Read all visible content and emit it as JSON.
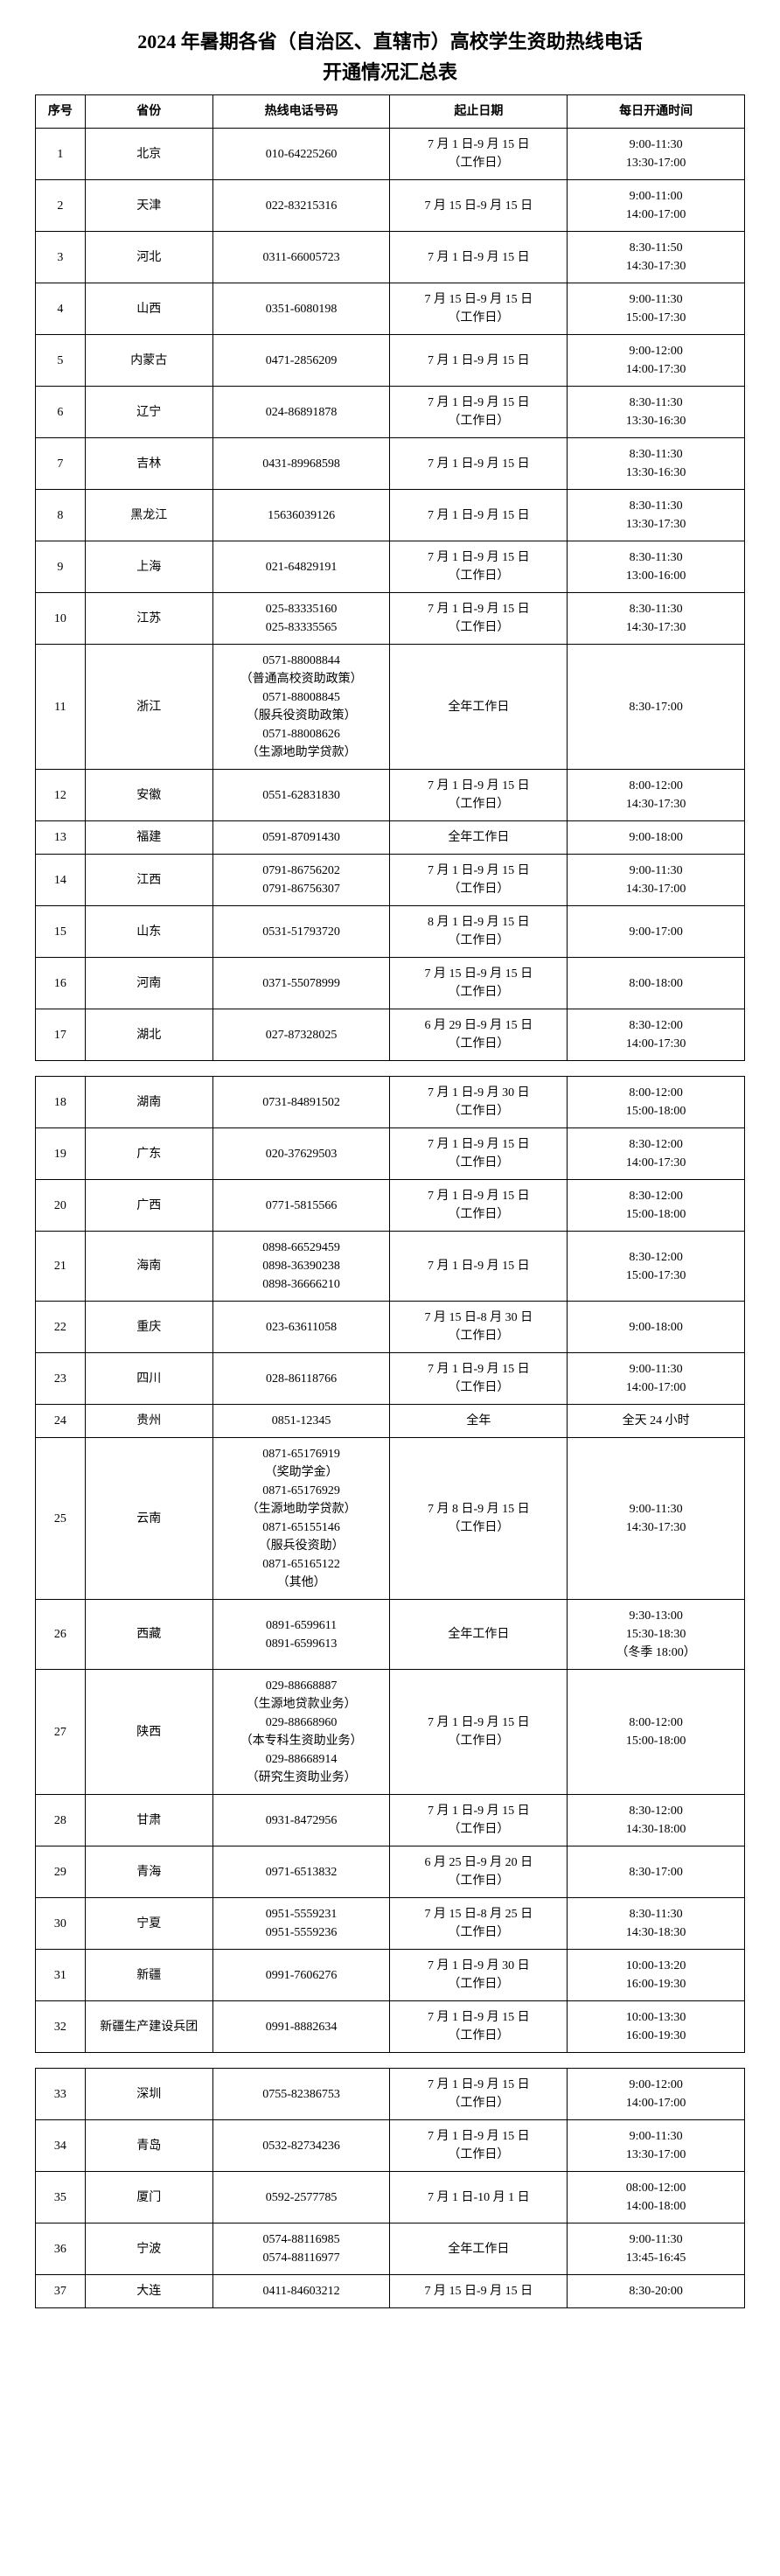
{
  "title_line1": "2024 年暑期各省（自治区、直辖市）高校学生资助热线电话",
  "title_line2": "开通情况汇总表",
  "headers": {
    "idx": "序号",
    "province": "省份",
    "phone": "热线电话号码",
    "dates": "起止日期",
    "hours": "每日开通时间"
  },
  "rows": [
    {
      "idx": "1",
      "prov": "北京",
      "phone": "010-64225260",
      "date": "7 月 1 日-9 月 15 日\n（工作日）",
      "time": "9:00-11:30\n13:30-17:00"
    },
    {
      "idx": "2",
      "prov": "天津",
      "phone": "022-83215316",
      "date": "7 月 15 日-9 月 15 日",
      "time": "9:00-11:00\n14:00-17:00"
    },
    {
      "idx": "3",
      "prov": "河北",
      "phone": "0311-66005723",
      "date": "7 月 1 日-9 月 15 日",
      "time": "8:30-11:50\n14:30-17:30"
    },
    {
      "idx": "4",
      "prov": "山西",
      "phone": "0351-6080198",
      "date": "7 月 15 日-9 月 15 日\n（工作日）",
      "time": "9:00-11:30\n15:00-17:30"
    },
    {
      "idx": "5",
      "prov": "内蒙古",
      "phone": "0471-2856209",
      "date": "7 月 1 日-9 月 15 日",
      "time": "9:00-12:00\n14:00-17:30"
    },
    {
      "idx": "6",
      "prov": "辽宁",
      "phone": "024-86891878",
      "date": "7 月 1 日-9 月 15 日\n（工作日）",
      "time": "8:30-11:30\n13:30-16:30"
    },
    {
      "idx": "7",
      "prov": "吉林",
      "phone": "0431-89968598",
      "date": "7 月 1 日-9 月 15 日",
      "time": "8:30-11:30\n13:30-16:30"
    },
    {
      "idx": "8",
      "prov": "黑龙江",
      "phone": "15636039126",
      "date": "7 月 1 日-9 月 15 日",
      "time": "8:30-11:30\n13:30-17:30"
    },
    {
      "idx": "9",
      "prov": "上海",
      "phone": "021-64829191",
      "date": "7 月 1 日-9 月 15 日\n（工作日）",
      "time": "8:30-11:30\n13:00-16:00"
    },
    {
      "idx": "10",
      "prov": "江苏",
      "phone": "025-83335160\n025-83335565",
      "date": "7 月 1 日-9 月 15 日\n（工作日）",
      "time": "8:30-11:30\n14:30-17:30"
    },
    {
      "idx": "11",
      "prov": "浙江",
      "phone": "0571-88008844\n（普通高校资助政策）\n0571-88008845\n（服兵役资助政策）\n0571-88008626\n（生源地助学贷款）",
      "date": "全年工作日",
      "time": "8:30-17:00"
    },
    {
      "idx": "12",
      "prov": "安徽",
      "phone": "0551-62831830",
      "date": "7 月 1 日-9 月 15 日\n（工作日）",
      "time": "8:00-12:00\n14:30-17:30"
    },
    {
      "idx": "13",
      "prov": "福建",
      "phone": "0591-87091430",
      "date": "全年工作日",
      "time": "9:00-18:00"
    },
    {
      "idx": "14",
      "prov": "江西",
      "phone": "0791-86756202\n0791-86756307",
      "date": "7 月 1 日-9 月 15 日\n（工作日）",
      "time": "9:00-11:30\n14:30-17:00"
    },
    {
      "idx": "15",
      "prov": "山东",
      "phone": "0531-51793720",
      "date": "8 月 1 日-9 月 15 日\n（工作日）",
      "time": "9:00-17:00"
    },
    {
      "idx": "16",
      "prov": "河南",
      "phone": "0371-55078999",
      "date": "7 月 15 日-9 月 15 日\n（工作日）",
      "time": "8:00-18:00"
    },
    {
      "idx": "17",
      "prov": "湖北",
      "phone": "027-87328025",
      "date": "6 月 29 日-9 月 15 日\n（工作日）",
      "time": "8:30-12:00\n14:00-17:30"
    },
    {
      "idx": "18",
      "prov": "湖南",
      "phone": "0731-84891502",
      "date": "7 月 1 日-9 月 30 日\n（工作日）",
      "time": "8:00-12:00\n15:00-18:00",
      "gapBefore": true
    },
    {
      "idx": "19",
      "prov": "广东",
      "phone": "020-37629503",
      "date": "7 月 1 日-9 月 15 日\n（工作日）",
      "time": "8:30-12:00\n14:00-17:30"
    },
    {
      "idx": "20",
      "prov": "广西",
      "phone": "0771-5815566",
      "date": "7 月 1 日-9 月 15 日\n（工作日）",
      "time": "8:30-12:00\n15:00-18:00"
    },
    {
      "idx": "21",
      "prov": "海南",
      "phone": "0898-66529459\n0898-36390238\n0898-36666210",
      "date": "7 月 1 日-9 月 15 日",
      "time": "8:30-12:00\n15:00-17:30"
    },
    {
      "idx": "22",
      "prov": "重庆",
      "phone": "023-63611058",
      "date": "7 月 15 日-8 月 30 日\n（工作日）",
      "time": "9:00-18:00"
    },
    {
      "idx": "23",
      "prov": "四川",
      "phone": "028-86118766",
      "date": "7 月 1 日-9 月 15 日\n（工作日）",
      "time": "9:00-11:30\n14:00-17:00"
    },
    {
      "idx": "24",
      "prov": "贵州",
      "phone": "0851-12345",
      "date": "全年",
      "time": "全天 24 小时"
    },
    {
      "idx": "25",
      "prov": "云南",
      "phone": "0871-65176919\n（奖助学金）\n0871-65176929\n（生源地助学贷款）\n0871-65155146\n（服兵役资助）\n0871-65165122\n（其他）",
      "date": "7 月 8 日-9 月 15 日\n（工作日）",
      "time": "9:00-11:30\n14:30-17:30"
    },
    {
      "idx": "26",
      "prov": "西藏",
      "phone": "0891-6599611\n0891-6599613",
      "date": "全年工作日",
      "time": "9:30-13:00\n15:30-18:30\n（冬季 18:00）"
    },
    {
      "idx": "27",
      "prov": "陕西",
      "phone": "029-88668887\n（生源地贷款业务）\n029-88668960\n（本专科生资助业务）\n029-88668914\n（研究生资助业务）",
      "date": "7 月 1 日-9 月 15 日\n（工作日）",
      "time": "8:00-12:00\n15:00-18:00"
    },
    {
      "idx": "28",
      "prov": "甘肃",
      "phone": "0931-8472956",
      "date": "7 月 1 日-9 月 15 日\n（工作日）",
      "time": "8:30-12:00\n14:30-18:00"
    },
    {
      "idx": "29",
      "prov": "青海",
      "phone": "0971-6513832",
      "date": "6 月 25 日-9 月 20 日\n（工作日）",
      "time": "8:30-17:00"
    },
    {
      "idx": "30",
      "prov": "宁夏",
      "phone": "0951-5559231\n0951-5559236",
      "date": "7 月 15 日-8 月 25 日\n（工作日）",
      "time": "8:30-11:30\n14:30-18:30"
    },
    {
      "idx": "31",
      "prov": "新疆",
      "phone": "0991-7606276",
      "date": "7 月 1 日-9 月 30 日\n（工作日）",
      "time": "10:00-13:20\n16:00-19:30"
    },
    {
      "idx": "32",
      "prov": "新疆生产建设兵团",
      "phone": "0991-8882634",
      "date": "7 月 1 日-9 月 15 日\n（工作日）",
      "time": "10:00-13:30\n16:00-19:30"
    },
    {
      "idx": "33",
      "prov": "深圳",
      "phone": "0755-82386753",
      "date": "7 月 1 日-9 月 15 日\n（工作日）",
      "time": "9:00-12:00\n14:00-17:00",
      "gapBefore": true
    },
    {
      "idx": "34",
      "prov": "青岛",
      "phone": "0532-82734236",
      "date": "7 月 1 日-9 月 15 日\n（工作日）",
      "time": "9:00-11:30\n13:30-17:00"
    },
    {
      "idx": "35",
      "prov": "厦门",
      "phone": "0592-2577785",
      "date": "7 月 1 日-10 月 1 日",
      "time": "08:00-12:00\n14:00-18:00"
    },
    {
      "idx": "36",
      "prov": "宁波",
      "phone": "0574-88116985\n0574-88116977",
      "date": "全年工作日",
      "time": "9:00-11:30\n13:45-16:45"
    },
    {
      "idx": "37",
      "prov": "大连",
      "phone": "0411-84603212",
      "date": "7 月 15 日-9 月 15 日",
      "time": "8:30-20:00"
    }
  ]
}
